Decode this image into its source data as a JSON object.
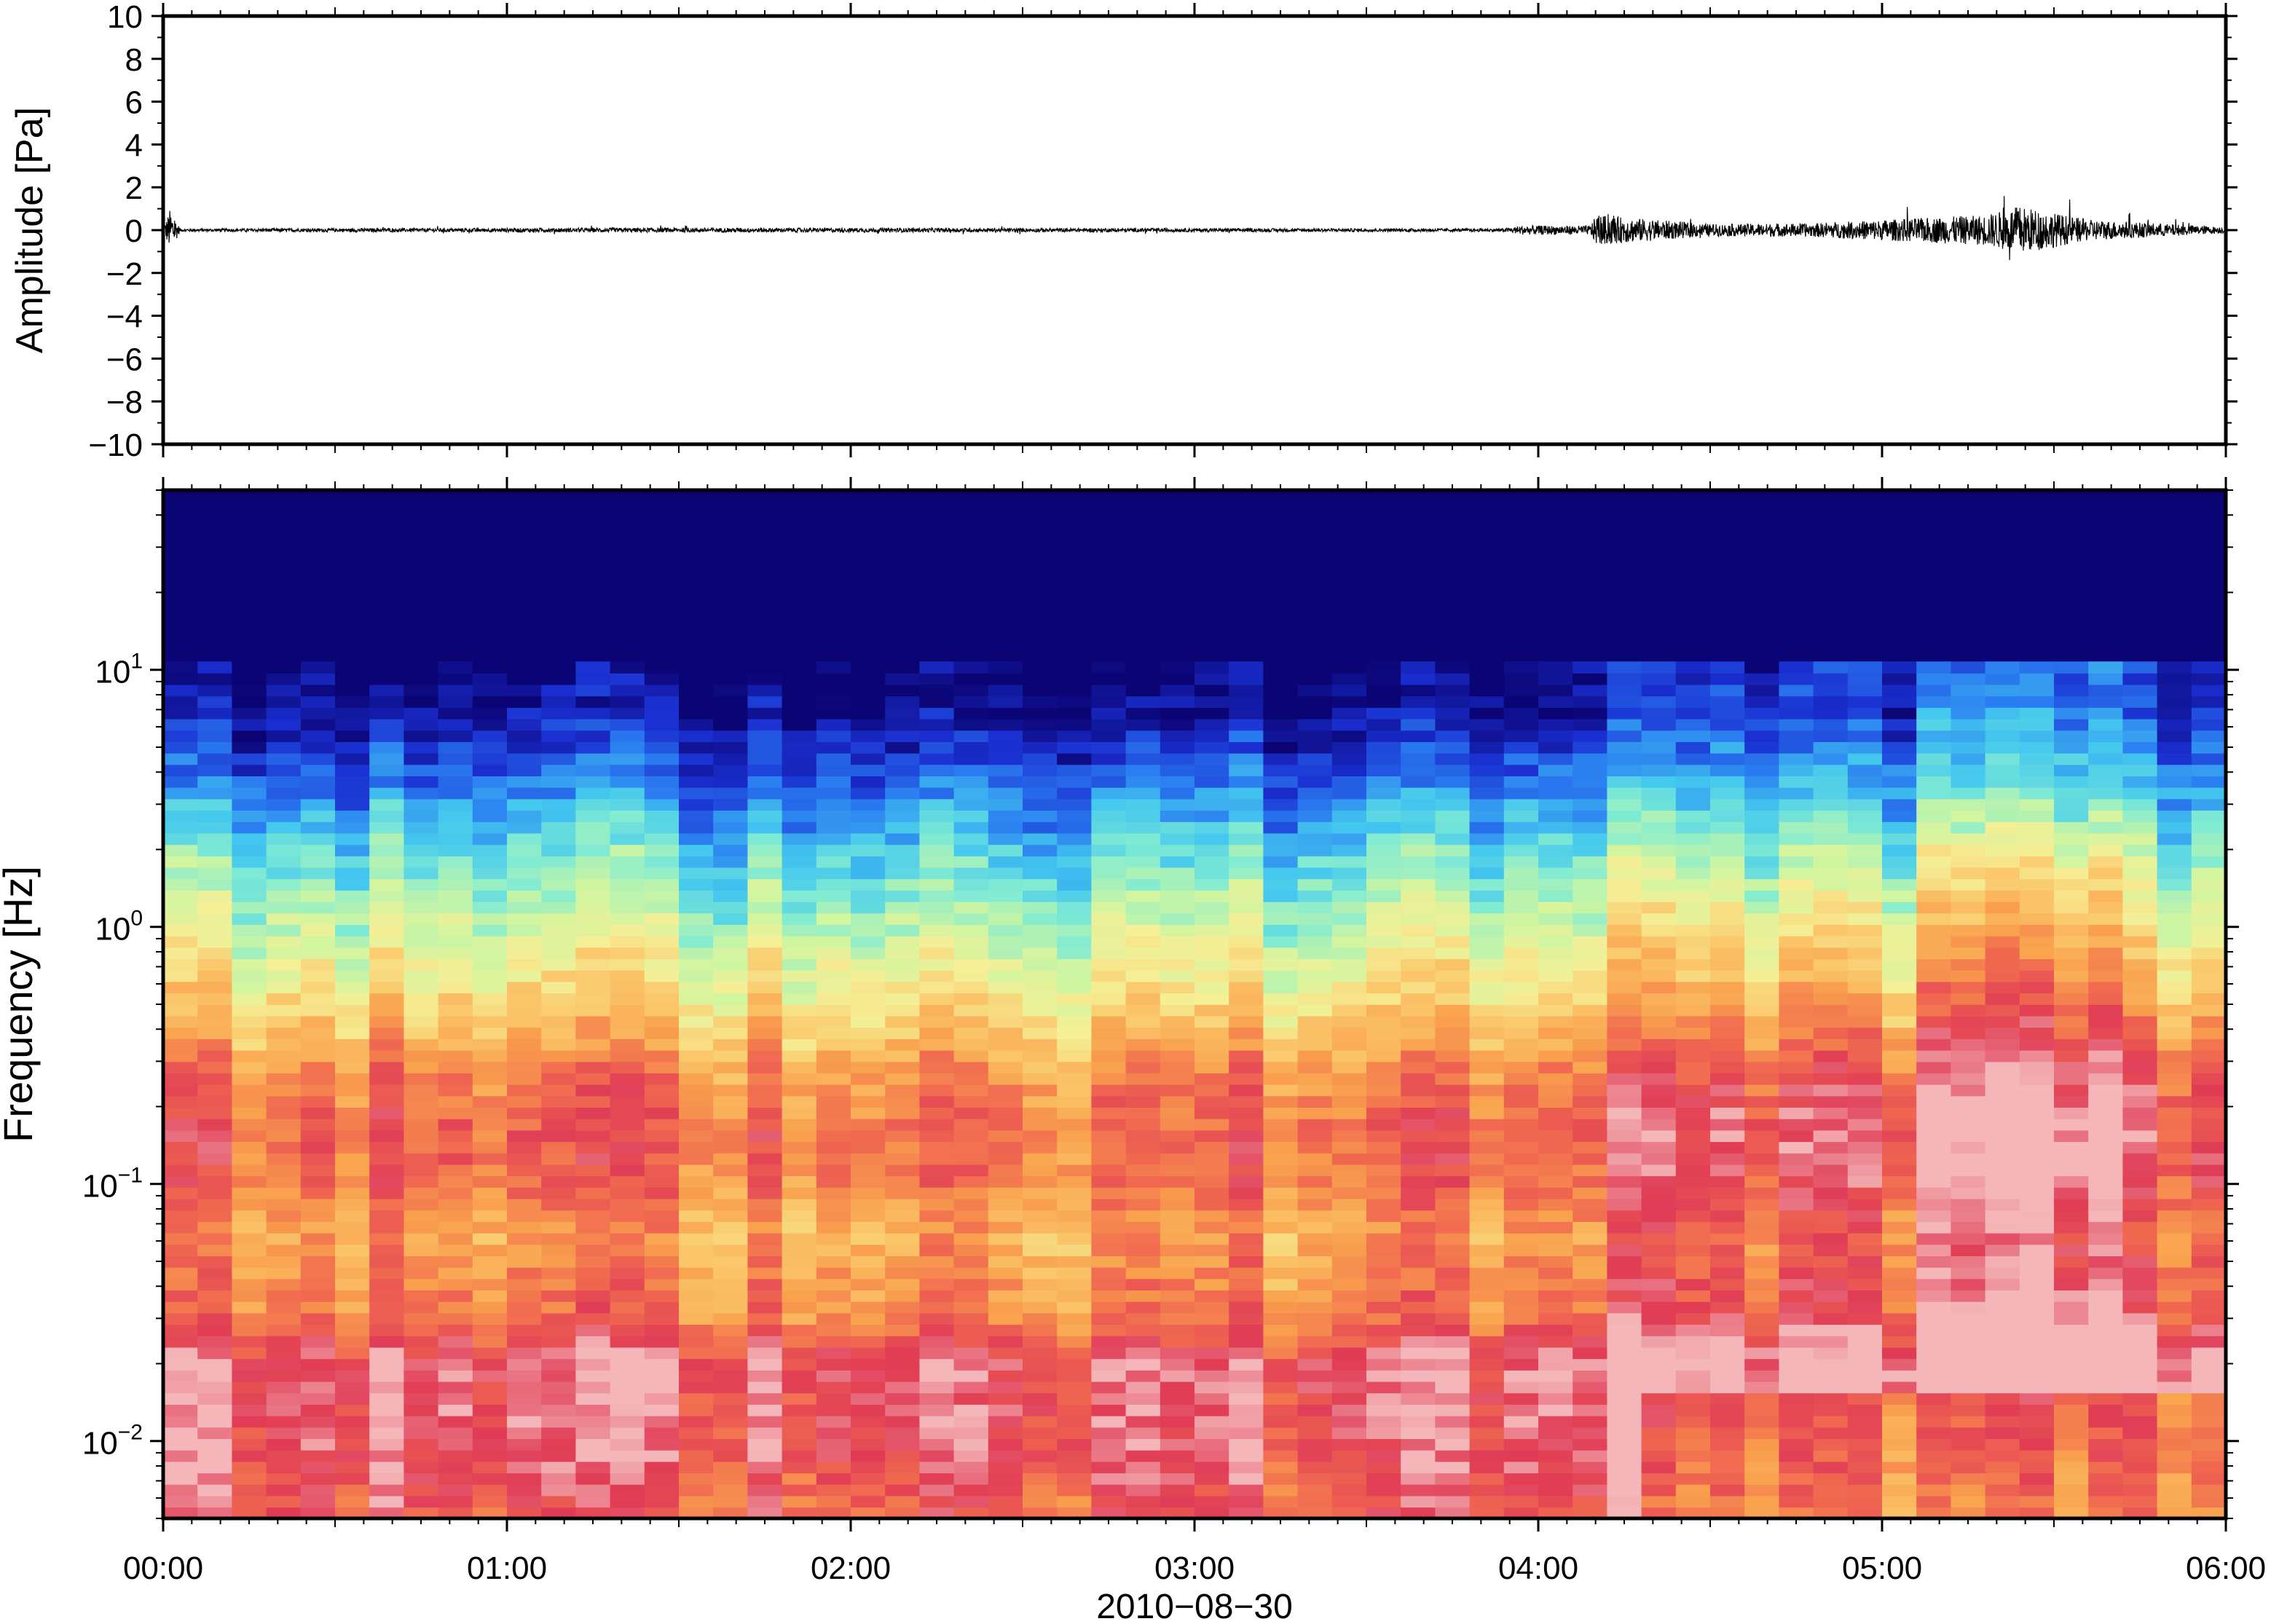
{
  "figure": {
    "date_label": "2010−08−30"
  },
  "chart_data": [
    {
      "type": "line",
      "ylabel": "Amplitude [Pa]",
      "xlabel": "",
      "ylim": [
        -10,
        10
      ],
      "yticks": [
        -10,
        -8,
        -6,
        -4,
        -2,
        0,
        2,
        4,
        6,
        8,
        10
      ],
      "ytick_labels": [
        "−10",
        "−8",
        "−6",
        "−4",
        "−2",
        "0",
        "2",
        "4",
        "6",
        "8",
        "10"
      ],
      "x_range_hours": [
        0,
        6
      ],
      "line_color": "#000000",
      "envelope": {
        "description_hours": [
          0.0,
          0.02,
          0.03,
          0.05,
          1.5,
          3.9,
          3.95,
          4.15,
          4.17,
          4.5,
          4.8,
          5.1,
          5.3,
          5.4,
          5.6,
          6.0
        ],
        "amplitude_pa": [
          0.1,
          1.4,
          1.0,
          0.1,
          0.15,
          0.1,
          0.3,
          0.3,
          1.0,
          0.4,
          0.45,
          0.8,
          1.0,
          1.6,
          0.7,
          0.2
        ]
      },
      "grid": false
    },
    {
      "type": "heatmap",
      "ylabel": "Frequency [Hz]",
      "xlabel": "2010−08−30",
      "y_scale": "log",
      "ylim_hz": [
        0.005,
        50
      ],
      "yticks_hz": [
        0.01,
        0.1,
        1,
        10
      ],
      "ytick_labels": [
        {
          "base": "10",
          "exp": "−2"
        },
        {
          "base": "10",
          "exp": "−1"
        },
        {
          "base": "10",
          "exp": "0"
        },
        {
          "base": "10",
          "exp": "1"
        }
      ],
      "x_range_hours": [
        0,
        6
      ],
      "xticks_hours": [
        0,
        1,
        2,
        3,
        4,
        5,
        6
      ],
      "xtick_labels": [
        "00:00",
        "01:00",
        "02:00",
        "03:00",
        "04:00",
        "05:00",
        "06:00"
      ],
      "colormap": [
        "#0b0474",
        "#1a2fd0",
        "#2a7cf0",
        "#44c8ee",
        "#82ecd2",
        "#d0f5a0",
        "#f5ef96",
        "#fbc66a",
        "#f9a24e",
        "#f06850",
        "#e03c56",
        "#f4b6b8"
      ],
      "time_bins": 60,
      "freq_bins": 90,
      "power_profile": {
        "log10_freq": [
          -2.3,
          -2.0,
          -1.7,
          -1.5,
          -1.2,
          -1.0,
          -0.8,
          -0.6,
          -0.3,
          0.0,
          0.3,
          0.6,
          0.85,
          1.0,
          1.7
        ],
        "level": [
          0.6,
          0.65,
          0.66,
          0.55,
          0.5,
          0.56,
          0.58,
          0.54,
          0.42,
          0.32,
          0.22,
          0.1,
          0.02,
          0.0,
          0.0
        ]
      },
      "grid": false
    }
  ]
}
